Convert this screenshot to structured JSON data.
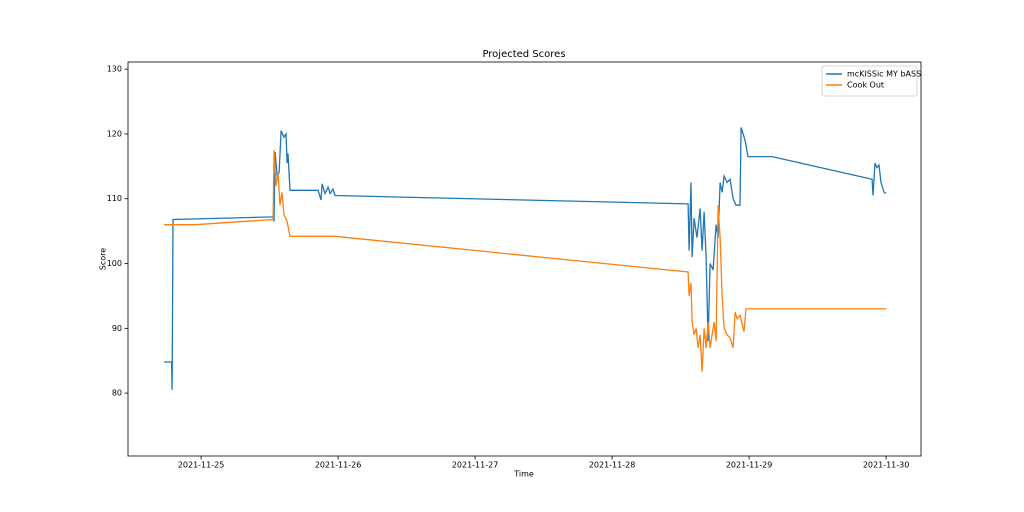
{
  "chart_data": {
    "type": "line",
    "title": "Projected Scores",
    "xlabel": "Time",
    "ylabel": "Score",
    "xlim": [
      "2021-11-24 11:12",
      "2021-11-30 06:07"
    ],
    "xticks": [
      "2021-11-25",
      "2021-11-26",
      "2021-11-27",
      "2021-11-28",
      "2021-11-29",
      "2021-11-30"
    ],
    "ylim": [
      70.3,
      131.1
    ],
    "yticks": [
      80,
      90,
      100,
      110,
      120,
      130
    ],
    "legend": "upper right",
    "series": [
      {
        "name": "mcKISSic MY bASS",
        "color": "#1f77b4",
        "x": [
          "2021-11-24 17:31",
          "2021-11-24 18:50",
          "2021-11-24 18:55",
          "2021-11-24 19:05",
          "2021-11-25 12:37",
          "2021-11-25 12:47",
          "2021-11-25 12:58",
          "2021-11-25 13:19",
          "2021-11-25 13:40",
          "2021-11-25 14:01",
          "2021-11-25 14:32",
          "2021-11-25 14:53",
          "2021-11-25 15:04",
          "2021-11-25 15:14",
          "2021-11-25 15:35",
          "2021-11-25 20:30",
          "2021-11-25 21:01",
          "2021-11-25 21:12",
          "2021-11-25 21:43",
          "2021-11-25 22:15",
          "2021-11-25 22:36",
          "2021-11-25 23:07",
          "2021-11-25 23:28",
          "2021-11-28 13:19",
          "2021-11-28 13:30",
          "2021-11-28 13:50",
          "2021-11-28 14:01",
          "2021-11-28 14:22",
          "2021-11-28 14:53",
          "2021-11-28 15:25",
          "2021-11-28 15:46",
          "2021-11-28 16:07",
          "2021-11-28 16:28",
          "2021-11-28 16:49",
          "2021-11-28 17:10",
          "2021-11-28 17:42",
          "2021-11-28 18:13",
          "2021-11-28 18:34",
          "2021-11-28 18:55",
          "2021-11-28 19:16",
          "2021-11-28 19:37",
          "2021-11-28 20:09",
          "2021-11-28 20:40",
          "2021-11-28 21:12",
          "2021-11-28 21:43",
          "2021-11-28 22:25",
          "2021-11-28 22:36",
          "2021-11-28 23:18",
          "2021-11-28 23:49",
          "2021-11-29 04:02",
          "2021-11-29 21:33",
          "2021-11-29 21:43",
          "2021-11-29 22:04",
          "2021-11-29 22:25",
          "2021-11-29 22:46",
          "2021-11-29 23:07",
          "2021-11-29 23:39",
          "2021-11-30 00:00"
        ],
        "values": [
          84.8,
          84.8,
          80.5,
          106.8,
          107.2,
          106.5,
          117.2,
          113.5,
          114,
          120.5,
          119.5,
          120,
          115.5,
          117,
          111.3,
          111.3,
          109.8,
          112.3,
          110.8,
          111.8,
          110.8,
          111.5,
          110.5,
          109.2,
          102,
          112.5,
          101,
          107,
          104,
          108.5,
          102,
          108,
          101,
          88,
          100,
          99,
          106,
          104,
          112.5,
          111,
          113.5,
          112.5,
          113,
          110,
          109,
          109,
          121,
          119,
          116.5,
          116.5,
          113,
          110.5,
          115.5,
          114.8,
          115.2,
          112.5,
          111,
          110.8
        ]
      },
      {
        "name": "Cook Out",
        "color": "#ff7f0e",
        "x": [
          "2021-11-24 17:31",
          "2021-11-24 22:57",
          "2021-11-25 12:37",
          "2021-11-25 12:47",
          "2021-11-25 13:08",
          "2021-11-25 13:29",
          "2021-11-25 13:50",
          "2021-11-25 14:11",
          "2021-11-25 14:32",
          "2021-11-25 15:04",
          "2021-11-25 15:35",
          "2021-11-25 23:28",
          "2021-11-28 13:19",
          "2021-11-28 13:30",
          "2021-11-28 13:50",
          "2021-11-28 14:01",
          "2021-11-28 14:22",
          "2021-11-28 14:43",
          "2021-11-28 15:04",
          "2021-11-28 15:25",
          "2021-11-28 15:46",
          "2021-11-28 16:07",
          "2021-11-28 16:28",
          "2021-11-28 16:49",
          "2021-11-28 17:10",
          "2021-11-28 17:31",
          "2021-11-28 17:52",
          "2021-11-28 18:13",
          "2021-11-28 18:34",
          "2021-11-28 18:55",
          "2021-11-28 19:16",
          "2021-11-28 19:37",
          "2021-11-28 20:09",
          "2021-11-28 20:40",
          "2021-11-28 21:12",
          "2021-11-28 21:33",
          "2021-11-28 21:54",
          "2021-11-28 22:25",
          "2021-11-28 23:07",
          "2021-11-28 23:28",
          "2021-11-30 00:00"
        ],
        "values": [
          106,
          106,
          106.8,
          117.5,
          112,
          114,
          109,
          111,
          107.5,
          106.5,
          104.2,
          104.2,
          98.7,
          95,
          97,
          91,
          89,
          90,
          87,
          89,
          83.3,
          90,
          87,
          91,
          87,
          89,
          91,
          88,
          109,
          104,
          95,
          90,
          89,
          88.5,
          87,
          92.5,
          91.5,
          92,
          89.5,
          93,
          93
        ]
      }
    ]
  }
}
